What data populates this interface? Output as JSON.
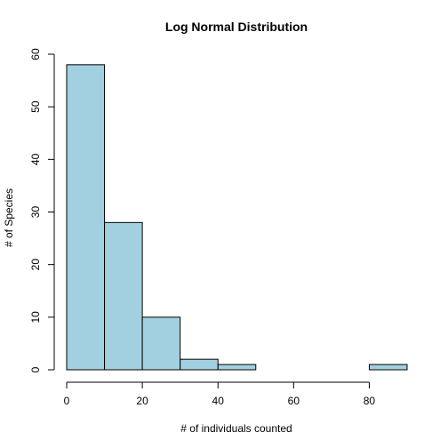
{
  "chart_data": {
    "type": "bar",
    "title": "Log Normal Distribution",
    "xlabel": "# of individuals counted",
    "ylabel": "# of Species",
    "bins": [
      [
        0,
        10
      ],
      [
        10,
        20
      ],
      [
        20,
        30
      ],
      [
        30,
        40
      ],
      [
        40,
        50
      ],
      [
        50,
        60
      ],
      [
        60,
        70
      ],
      [
        70,
        80
      ],
      [
        80,
        90
      ]
    ],
    "values": [
      58,
      28,
      10,
      2,
      1,
      0,
      0,
      0,
      1
    ],
    "xlim": [
      0,
      90
    ],
    "ylim": [
      0,
      60
    ],
    "x_ticks": [
      0,
      20,
      40,
      60,
      80
    ],
    "y_ticks": [
      0,
      10,
      20,
      30,
      40,
      50,
      60
    ],
    "bar_color": "#a3d0e0",
    "grid": false
  }
}
